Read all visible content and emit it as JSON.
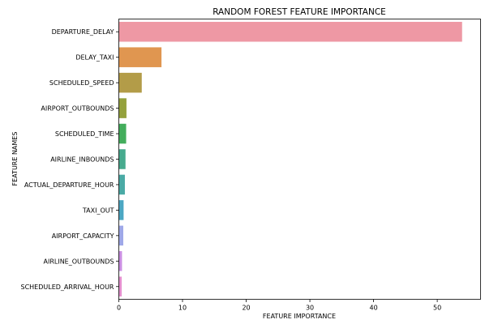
{
  "chart_data": {
    "type": "bar",
    "orientation": "horizontal",
    "title": "RANDOM FOREST FEATURE IMPORTANCE",
    "xlabel": "FEATURE IMPORTANCE",
    "ylabel": "FEATURE NAMES",
    "xlim": [
      0,
      56.8
    ],
    "xticks": [
      "0",
      "10",
      "20",
      "30",
      "40",
      "50"
    ],
    "grid": false,
    "legend": "none",
    "categories": [
      "DEPARTURE_DELAY",
      "DELAY_TAXI",
      "SCHEDULED_SPEED",
      "AIRPORT_OUTBOUNDS",
      "SCHEDULED_TIME",
      "AIRLINE_INBOUNDS",
      "ACTUAL_DEPARTURE_HOUR",
      "TAXI_OUT",
      "AIRPORT_CAPACITY",
      "AIRLINE_OUTBOUNDS",
      "SCHEDULED_ARRIVAL_HOUR"
    ],
    "values": [
      53.9,
      6.7,
      3.6,
      1.2,
      1.15,
      1.05,
      0.95,
      0.75,
      0.7,
      0.5,
      0.45
    ],
    "colors": [
      "#ee98a4",
      "#e09650",
      "#b39c48",
      "#94a13d",
      "#43ad5c",
      "#47aa8e",
      "#4aaaa5",
      "#4ca7c3",
      "#9fa8e8",
      "#cb8fe3",
      "#e590cf"
    ]
  }
}
